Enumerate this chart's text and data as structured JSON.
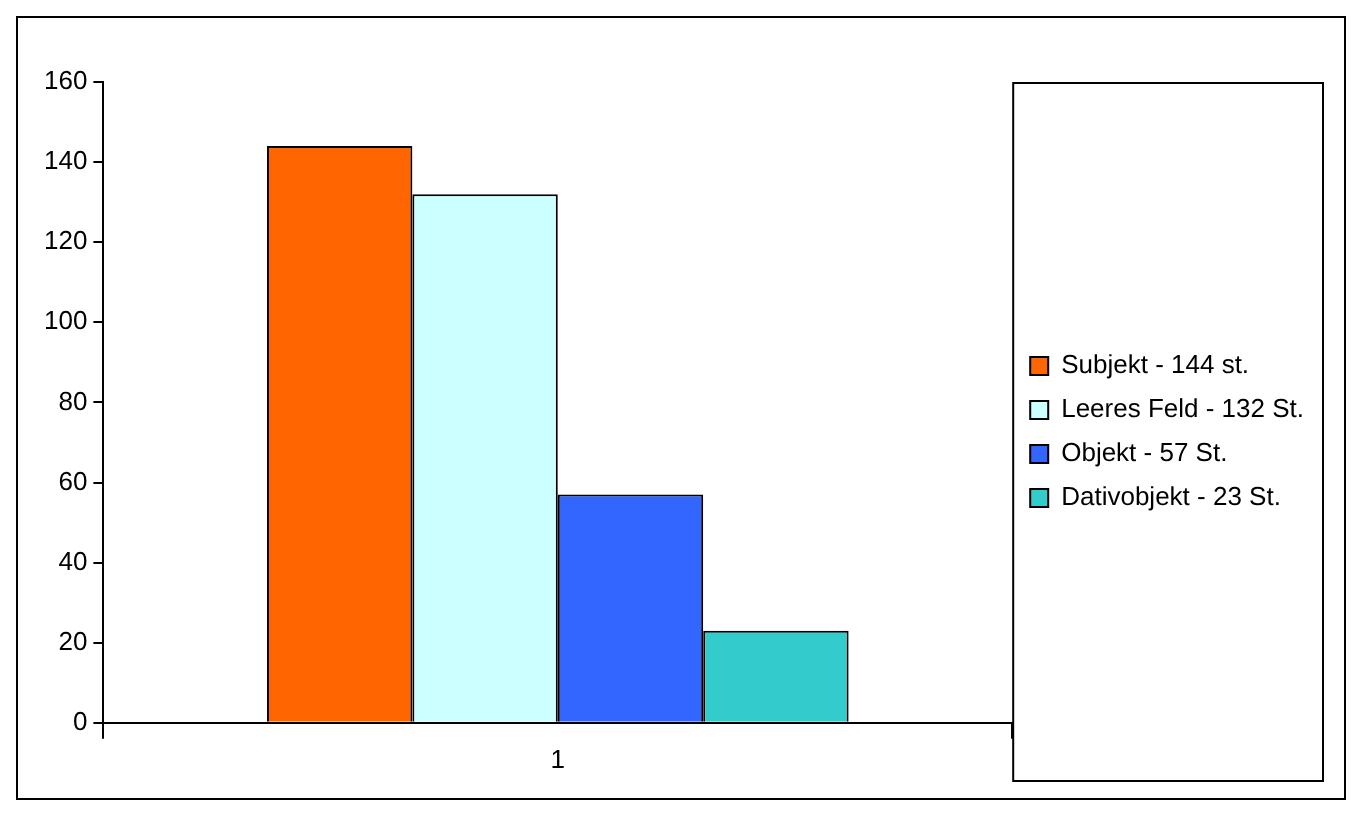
{
  "chart_data": {
    "type": "bar",
    "categories": [
      "1"
    ],
    "series": [
      {
        "name": "Subjekt - 144 st.",
        "color": "#ff6600",
        "values": [
          144
        ]
      },
      {
        "name": "Leeres Feld - 132 St.",
        "color": "#ccffff",
        "values": [
          132
        ]
      },
      {
        "name": "Objekt - 57 St.",
        "color": "#3366ff",
        "values": [
          57
        ]
      },
      {
        "name": "Dativobjekt - 23 St.",
        "color": "#33cccc",
        "values": [
          23
        ]
      }
    ],
    "ylim": [
      0,
      160
    ],
    "yticks": [
      0,
      20,
      40,
      60,
      80,
      100,
      120,
      140,
      160
    ],
    "grid": false,
    "legend": "right"
  }
}
